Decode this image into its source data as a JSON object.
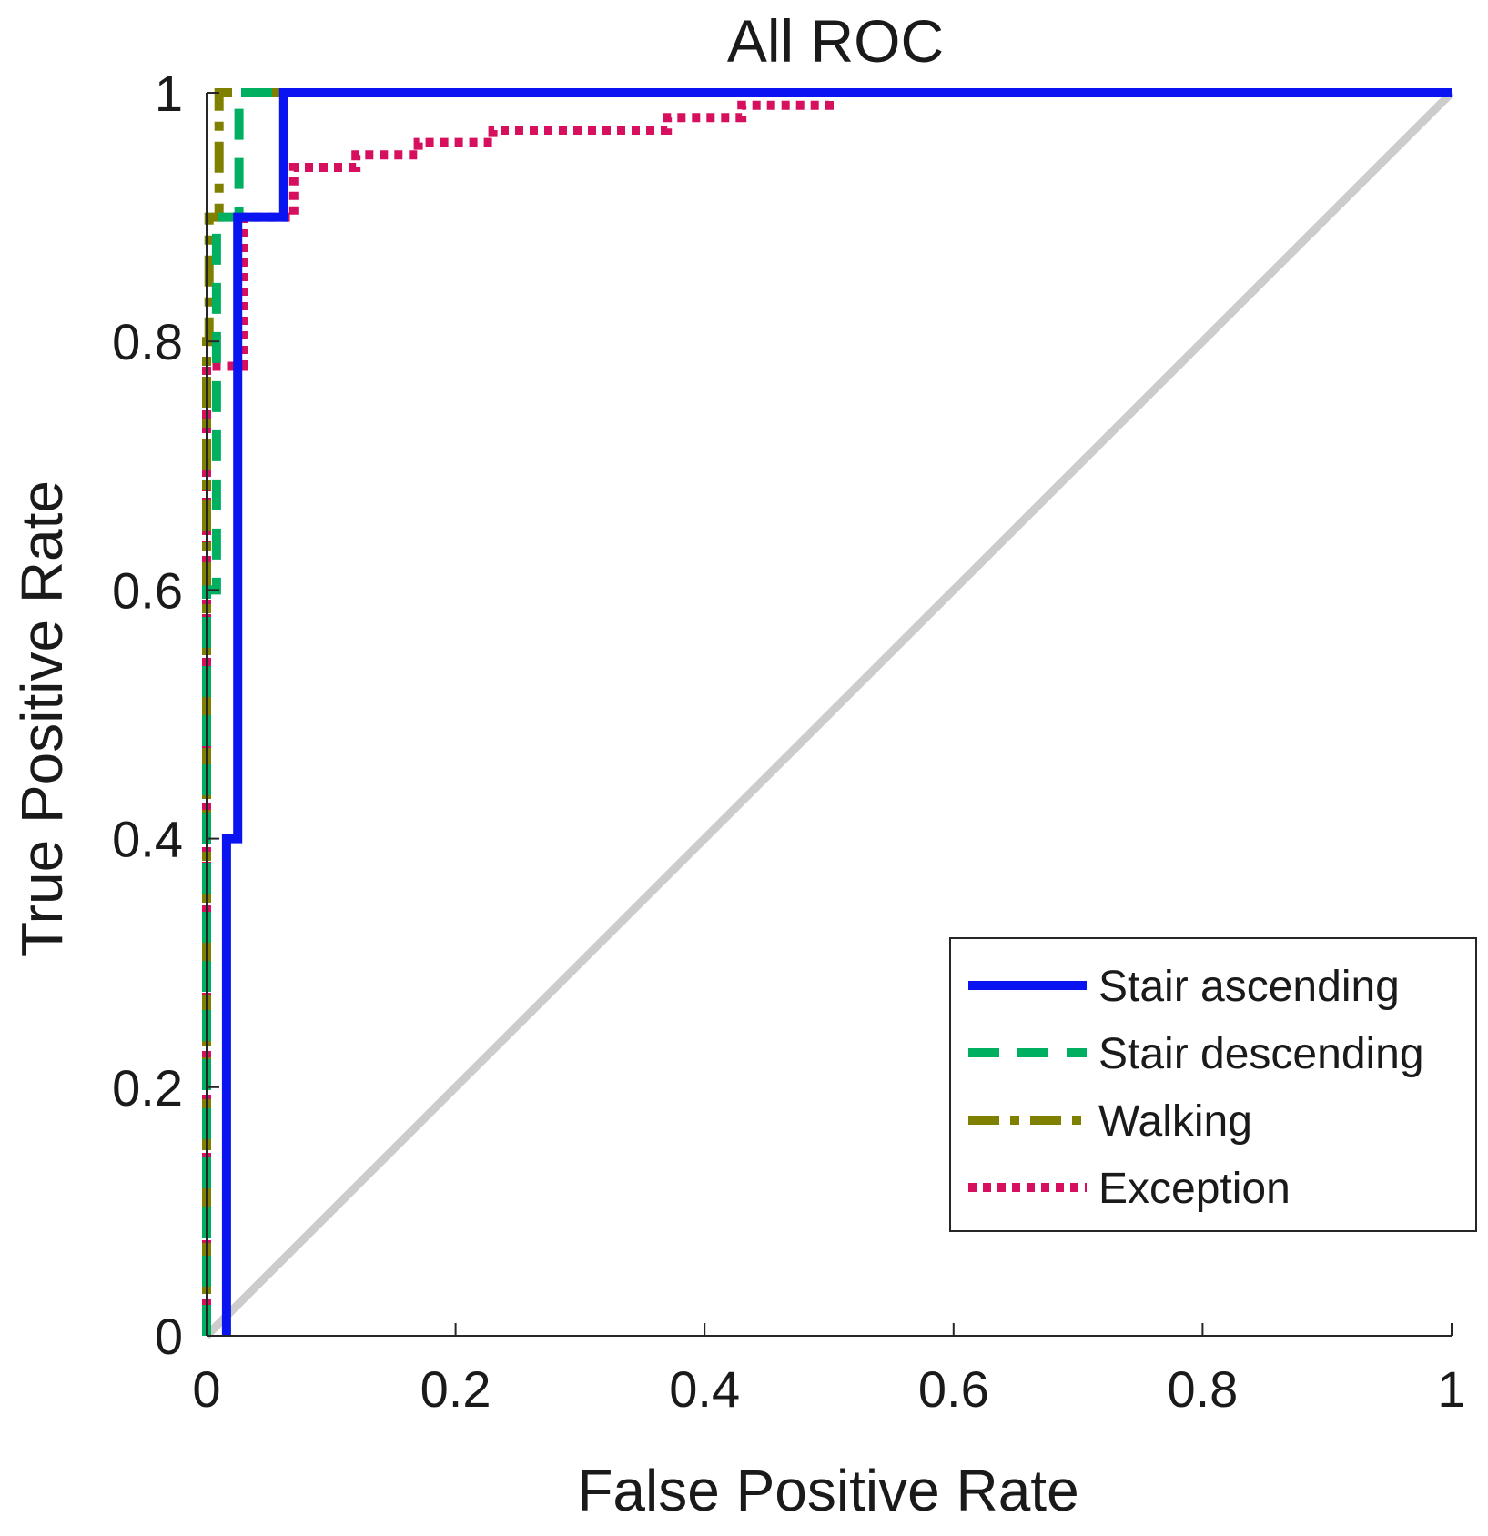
{
  "chart_data": {
    "type": "line",
    "title": "All ROC",
    "xlabel": "False Positive Rate",
    "ylabel": "True Positive Rate",
    "xlim": [
      0,
      1
    ],
    "ylim": [
      0,
      1
    ],
    "grid": false,
    "legend_position": "bottom-right",
    "x_ticks": [
      0,
      0.2,
      0.4,
      0.6,
      0.8,
      1
    ],
    "y_ticks": [
      0,
      0.2,
      0.4,
      0.6,
      0.8,
      1
    ],
    "x_tick_labels": [
      "0",
      "0.2",
      "0.4",
      "0.6",
      "0.8",
      "1"
    ],
    "y_tick_labels": [
      "0",
      "0.2",
      "0.4",
      "0.6",
      "0.8",
      "1"
    ],
    "reference_line": {
      "name": "chance",
      "color": "#cccccc",
      "x": [
        0,
        1
      ],
      "y": [
        0,
        1
      ]
    },
    "series": [
      {
        "name": "Stair ascending",
        "color": "#0a14f0",
        "style": "solid",
        "x": [
          0.016,
          0.016,
          0.025,
          0.025,
          0.062,
          0.062,
          1.0
        ],
        "y": [
          0.0,
          0.4,
          0.4,
          0.9,
          0.9,
          1.0,
          1.0
        ]
      },
      {
        "name": "Stair descending",
        "color": "#00b060",
        "style": "dashed",
        "x": [
          0.0,
          0.0,
          0.008,
          0.008,
          0.026,
          0.026,
          1.0
        ],
        "y": [
          0.0,
          0.6,
          0.6,
          0.9,
          0.9,
          1.0,
          1.0
        ]
      },
      {
        "name": "Walking",
        "color": "#808000",
        "style": "dashdot",
        "x": [
          0.0,
          0.0,
          0.002,
          0.002,
          0.01,
          0.01,
          1.0
        ],
        "y": [
          0.0,
          0.8,
          0.8,
          0.9,
          0.9,
          1.0,
          1.0
        ]
      },
      {
        "name": "Exception",
        "color": "#d6105e",
        "style": "dotted",
        "x": [
          0.0,
          0.0,
          0.03,
          0.03,
          0.07,
          0.07,
          0.12,
          0.12,
          0.17,
          0.17,
          0.23,
          0.23,
          0.37,
          0.37,
          0.43,
          0.43,
          0.5,
          0.5,
          1.0
        ],
        "y": [
          0.0,
          0.78,
          0.78,
          0.9,
          0.9,
          0.94,
          0.94,
          0.95,
          0.95,
          0.96,
          0.96,
          0.97,
          0.97,
          0.98,
          0.98,
          0.99,
          0.99,
          1.0,
          1.0
        ]
      }
    ]
  }
}
